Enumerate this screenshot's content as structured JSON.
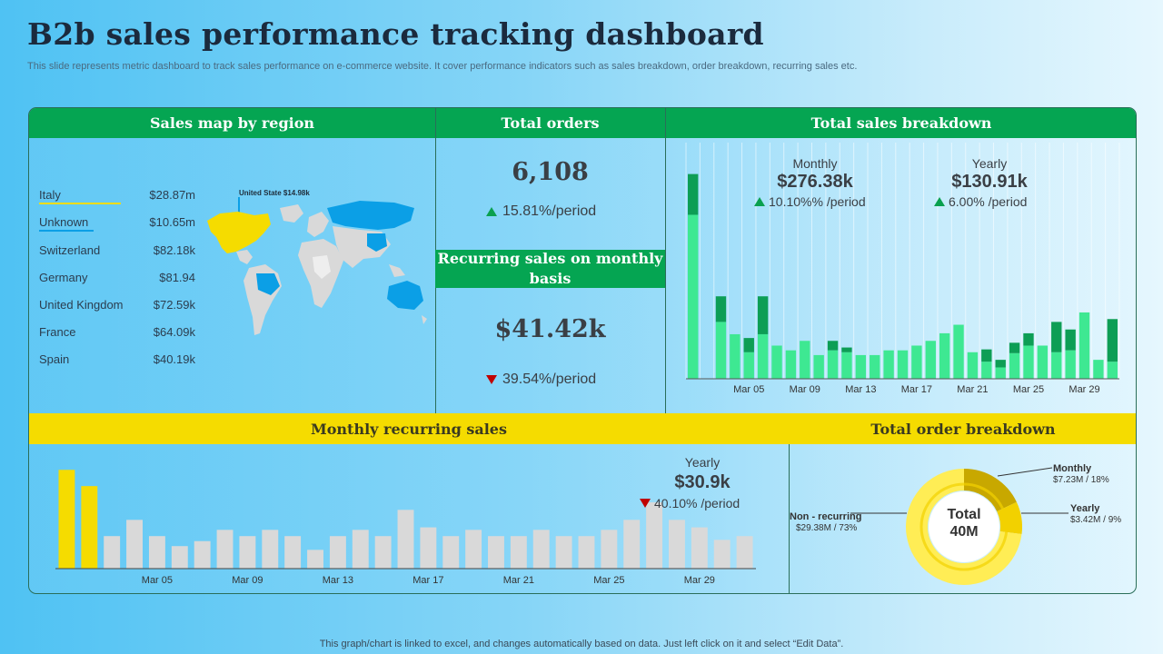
{
  "page": {
    "title": "B2b sales performance tracking dashboard",
    "subtitle": "This slide represents metric dashboard to track sales performance on e-commerce website. It cover performance indicators such as sales breakdown, order breakdown, recurring sales etc.",
    "footer": "This graph/chart is linked to excel,  and changes automatically based on data. Just left click on it and select “Edit Data”."
  },
  "colors": {
    "green": "#05a552",
    "yellow": "#f5dc00",
    "bar_light_green": "#3ee892",
    "bar_dark_green": "#0d9e55",
    "bar_grey": "#d9d9d9",
    "bar_yellow": "#f5dc00"
  },
  "sales_map": {
    "header": "Sales map by region",
    "callout": "United State $14.98k",
    "regions": [
      {
        "name": "Italy",
        "value": "$28.87m"
      },
      {
        "name": "Unknown",
        "value": "$10.65m"
      },
      {
        "name": "Switzerland",
        "value": "$82.18k"
      },
      {
        "name": "Germany",
        "value": "$81.94"
      },
      {
        "name": "United Kingdom",
        "value": "$72.59k"
      },
      {
        "name": "France",
        "value": "$64.09k"
      },
      {
        "name": "Spain",
        "value": "$40.19k"
      }
    ]
  },
  "total_orders": {
    "header": "Total orders",
    "value": "6,108",
    "delta": "15.81%/period"
  },
  "recurring_monthly": {
    "header": "Recurring sales on monthly basis",
    "value": "$41.42k",
    "delta": "39.54%/period"
  },
  "sales_breakdown": {
    "header": "Total sales breakdown",
    "monthly_label": "Monthly",
    "monthly_value": "$276.38k",
    "monthly_delta": "10.10%% /period",
    "yearly_label": "Yearly",
    "yearly_value": "$130.91k",
    "yearly_delta": "6.00% /period"
  },
  "monthly_recurring": {
    "header": "Monthly recurring sales",
    "yearly_label": "Yearly",
    "yearly_value": "$30.9k",
    "yearly_delta": "40.10% /period"
  },
  "order_breakdown": {
    "header": "Total order breakdown",
    "center_label": "Total",
    "center_value": "40M",
    "monthly_name": "Monthly",
    "monthly_value": "$7.23M / 18%",
    "yearly_name": "Yearly",
    "yearly_value": "$3.42M / 9%",
    "nonrec_name": "Non - recurring",
    "nonrec_value": "$29.38M / 73%"
  },
  "chart_data": [
    {
      "id": "total-sales-breakdown",
      "type": "bar",
      "stacked": true,
      "title": "Total sales breakdown",
      "categories": [
        "Mar 01",
        "Mar 02",
        "Mar 03",
        "Mar 04",
        "Mar 05",
        "Mar 06",
        "Mar 07",
        "Mar 08",
        "Mar 09",
        "Mar 10",
        "Mar 11",
        "Mar 12",
        "Mar 13",
        "Mar 14",
        "Mar 15",
        "Mar 16",
        "Mar 17",
        "Mar 18",
        "Mar 19",
        "Mar 20",
        "Mar 21",
        "Mar 22",
        "Mar 23",
        "Mar 24",
        "Mar 25",
        "Mar 26",
        "Mar 27",
        "Mar 28",
        "Mar 29",
        "Mar 30",
        "Mar 31"
      ],
      "tick_labels": [
        "Mar 05",
        "Mar 09",
        "Mar 13",
        "Mar 17",
        "Mar 21",
        "Mar 25",
        "Mar 29"
      ],
      "series": [
        {
          "name": "Base",
          "values": [
            173,
            0,
            60,
            47,
            28,
            47,
            35,
            30,
            40,
            25,
            30,
            28,
            25,
            25,
            30,
            30,
            35,
            40,
            48,
            57,
            28,
            18,
            12,
            27,
            35,
            35,
            28,
            30,
            70,
            20,
            18
          ]
        },
        {
          "name": "Top",
          "values": [
            43,
            0,
            27,
            0,
            15,
            40,
            0,
            0,
            0,
            0,
            10,
            5,
            0,
            0,
            0,
            0,
            0,
            0,
            0,
            0,
            0,
            13,
            8,
            11,
            13,
            0,
            32,
            22,
            0,
            0,
            45
          ]
        }
      ],
      "ylim": [
        0,
        230
      ]
    },
    {
      "id": "monthly-recurring-sales",
      "type": "bar",
      "title": "Monthly recurring sales",
      "categories": [
        "Mar 01",
        "Mar 02",
        "Mar 03",
        "Mar 04",
        "Mar 05",
        "Mar 06",
        "Mar 07",
        "Mar 08",
        "Mar 09",
        "Mar 10",
        "Mar 11",
        "Mar 12",
        "Mar 13",
        "Mar 14",
        "Mar 15",
        "Mar 16",
        "Mar 17",
        "Mar 18",
        "Mar 19",
        "Mar 20",
        "Mar 21",
        "Mar 22",
        "Mar 23",
        "Mar 24",
        "Mar 25",
        "Mar 26",
        "Mar 27",
        "Mar 28",
        "Mar 29",
        "Mar 30",
        "Mar 31"
      ],
      "tick_labels": [
        "Mar 05",
        "Mar 09",
        "Mar 13",
        "Mar 17",
        "Mar 21",
        "Mar 25",
        "Mar 29"
      ],
      "highlight_count": 2,
      "values": [
        79,
        66,
        26,
        39,
        26,
        18,
        22,
        31,
        26,
        31,
        26,
        15,
        26,
        31,
        26,
        47,
        33,
        26,
        31,
        26,
        26,
        31,
        26,
        26,
        31,
        39,
        53,
        39,
        33,
        23,
        26
      ],
      "ylim": [
        0,
        85
      ]
    },
    {
      "id": "total-order-breakdown",
      "type": "pie",
      "donut": true,
      "title": "Total order breakdown",
      "labels": [
        "Monthly",
        "Yearly",
        "Non - recurring"
      ],
      "values": [
        18,
        9,
        73
      ],
      "amounts": [
        "$7.23M",
        "$3.42M",
        "$29.38M"
      ],
      "colors": [
        "#c8a800",
        "#f2d100",
        "#ffed55"
      ]
    }
  ]
}
